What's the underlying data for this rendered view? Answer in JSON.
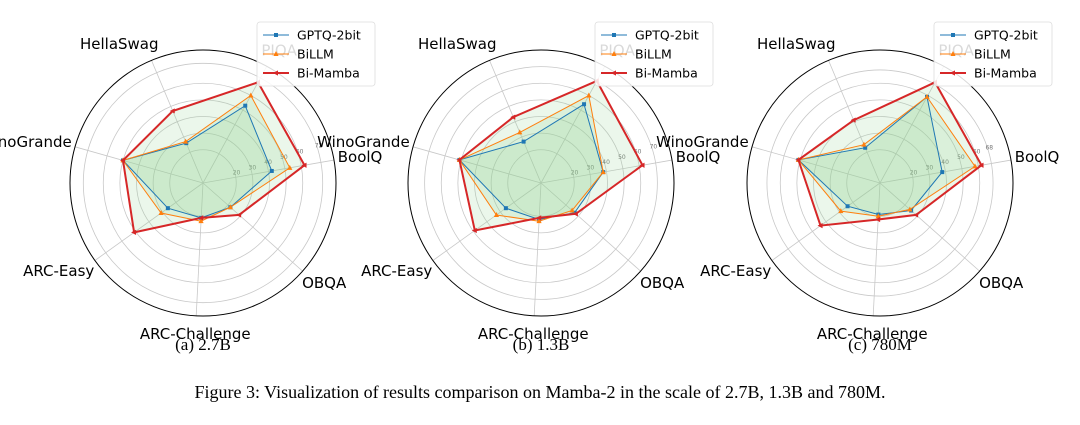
{
  "figure_caption": "Figure 3: Visualization of results comparison on Mamba-2 in the scale of 2.7B, 1.3B and 780M.",
  "colors": {
    "gptq": "#1f77b4",
    "billm": "#ff7f0e",
    "bimamba": "#d62728",
    "fill": "#8fd18f",
    "grid": "#c8c8c8",
    "frame": "#000000"
  },
  "chart_data": [
    {
      "type": "radar",
      "caption": "(a) 2.7B",
      "axes": [
        "PIQA",
        "BoolQ",
        "OBQA",
        "ARC-Challenge",
        "ARC-Easy",
        "WinoGrande",
        "HellaSwag"
      ],
      "rmax": 80,
      "rticks": [
        20,
        30,
        40,
        50,
        60,
        72
      ],
      "series": [
        {
          "name": "GPTQ-2bit",
          "marker": "square",
          "values": [
            53,
            42,
            22,
            21,
            26,
            50,
            26
          ]
        },
        {
          "name": "BiLLM",
          "marker": "triangle",
          "values": [
            60,
            53,
            22,
            23,
            31,
            50,
            27
          ]
        },
        {
          "name": "Bi-Mamba",
          "marker": "tri_left",
          "values": [
            69,
            62,
            29,
            21,
            51,
            50,
            47
          ]
        }
      ]
    },
    {
      "type": "radar",
      "caption": "(b) 1.3B",
      "axes": [
        "PIQA",
        "BoolQ",
        "OBQA",
        "ARC-Challenge",
        "ARC-Easy",
        "WinoGrande",
        "HellaSwag"
      ],
      "rmax": 80,
      "rticks": [
        20,
        30,
        40,
        50,
        60,
        70
      ],
      "series": [
        {
          "name": "GPTQ-2bit",
          "marker": "square",
          "values": [
            54,
            38,
            27,
            22,
            26,
            51,
            27
          ]
        },
        {
          "name": "BiLLM",
          "marker": "triangle",
          "values": [
            60,
            38,
            25,
            23,
            33,
            51,
            33
          ]
        },
        {
          "name": "Bi-Mamba",
          "marker": "tri_left",
          "values": [
            70,
            62,
            28,
            21,
            49,
            51,
            43
          ]
        }
      ]
    },
    {
      "type": "radar",
      "caption": "(c) 780M",
      "axes": [
        "PIQA",
        "BoolQ",
        "OBQA",
        "ARC-Challenge",
        "ARC-Easy",
        "WinoGrande",
        "HellaSwag"
      ],
      "rmax": 80,
      "rticks": [
        20,
        30,
        40,
        50,
        60,
        68
      ],
      "series": [
        {
          "name": "GPTQ-2bit",
          "marker": "square",
          "values": [
            59,
            38,
            25,
            19,
            24,
            51,
            23
          ]
        },
        {
          "name": "BiLLM",
          "marker": "triangle",
          "values": [
            59,
            58,
            24,
            20,
            29,
            51,
            25
          ]
        },
        {
          "name": "Bi-Mamba",
          "marker": "tri_left",
          "values": [
            69,
            62,
            29,
            22,
            44,
            51,
            41
          ]
        }
      ]
    }
  ]
}
